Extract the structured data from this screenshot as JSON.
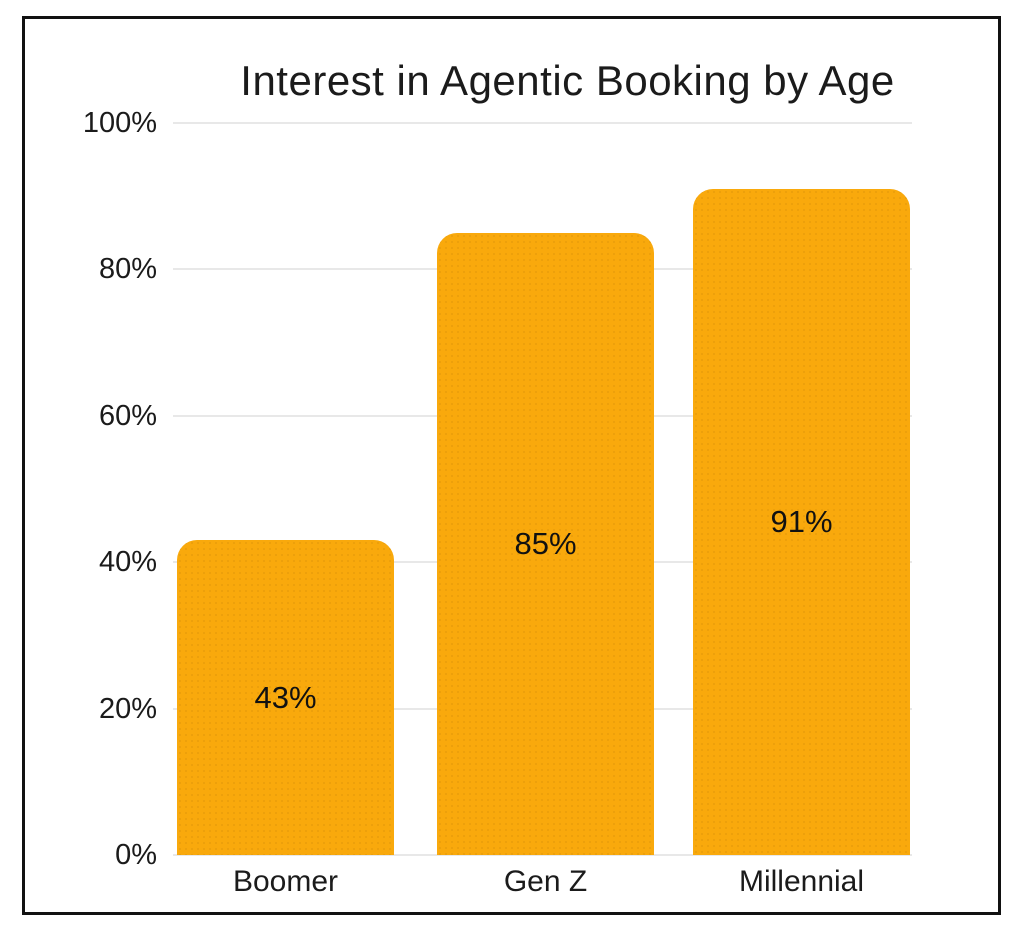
{
  "chart_data": {
    "type": "bar",
    "title": "Interest in Agentic Booking by Age",
    "categories": [
      "Boomer",
      "Gen Z",
      "Millennial"
    ],
    "values": [
      43,
      85,
      91
    ],
    "value_labels": [
      "43%",
      "85%",
      "91%"
    ],
    "xlabel": "",
    "ylabel": "",
    "ylim": [
      0,
      100
    ],
    "yticks": [
      0,
      20,
      40,
      60,
      80,
      100
    ],
    "ytick_labels": [
      "0%",
      "20%",
      "40%",
      "60%",
      "80%",
      "100%"
    ],
    "grid": "horizontal",
    "legend": "none",
    "value_label_position": "centered-inside-bar",
    "colors": {
      "bar": "#F9A90C",
      "gridline": "#E8E8E8",
      "text": "#1B1B1B",
      "value_label": "#111111",
      "frame_border": "#111111",
      "background": "#FFFFFF"
    }
  }
}
